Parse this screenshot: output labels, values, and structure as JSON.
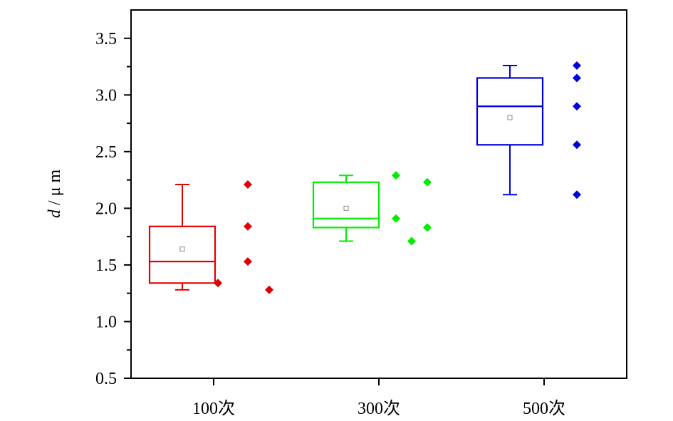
{
  "chart_data": {
    "type": "box",
    "ylabel": "d / μ m",
    "ylabel_parts": {
      "var": "d",
      "rest": " / μ m"
    },
    "ylim": [
      0.5,
      3.75
    ],
    "yticks": [
      0.5,
      1.0,
      1.5,
      2.0,
      2.5,
      3.0,
      3.5
    ],
    "ytick_labels": [
      "0.5",
      "1.0",
      "1.5",
      "2.0",
      "2.5",
      "3.0",
      "3.5"
    ],
    "grid": false,
    "categories": [
      "100次",
      "300次",
      "500次"
    ],
    "series": [
      {
        "category": "100次",
        "color": "#e00000",
        "box": {
          "whisker_low": 1.28,
          "q1": 1.34,
          "median": 1.53,
          "q3": 1.84,
          "whisker_high": 2.21,
          "mean": 1.64
        },
        "points": [
          1.34,
          2.21,
          1.84,
          1.53,
          1.28
        ]
      },
      {
        "category": "300次",
        "color": "#00ee00",
        "box": {
          "whisker_low": 1.71,
          "q1": 1.83,
          "median": 1.91,
          "q3": 2.23,
          "whisker_high": 2.29,
          "mean": 2.0
        },
        "points": [
          2.29,
          1.91,
          1.71,
          2.23,
          1.83
        ]
      },
      {
        "category": "500次",
        "color": "#0000dd",
        "box": {
          "whisker_low": 2.12,
          "q1": 2.56,
          "median": 2.9,
          "q3": 3.15,
          "whisker_high": 3.26,
          "mean": 2.8
        },
        "points": [
          3.26,
          3.15,
          2.9,
          2.56,
          2.12
        ]
      }
    ]
  }
}
